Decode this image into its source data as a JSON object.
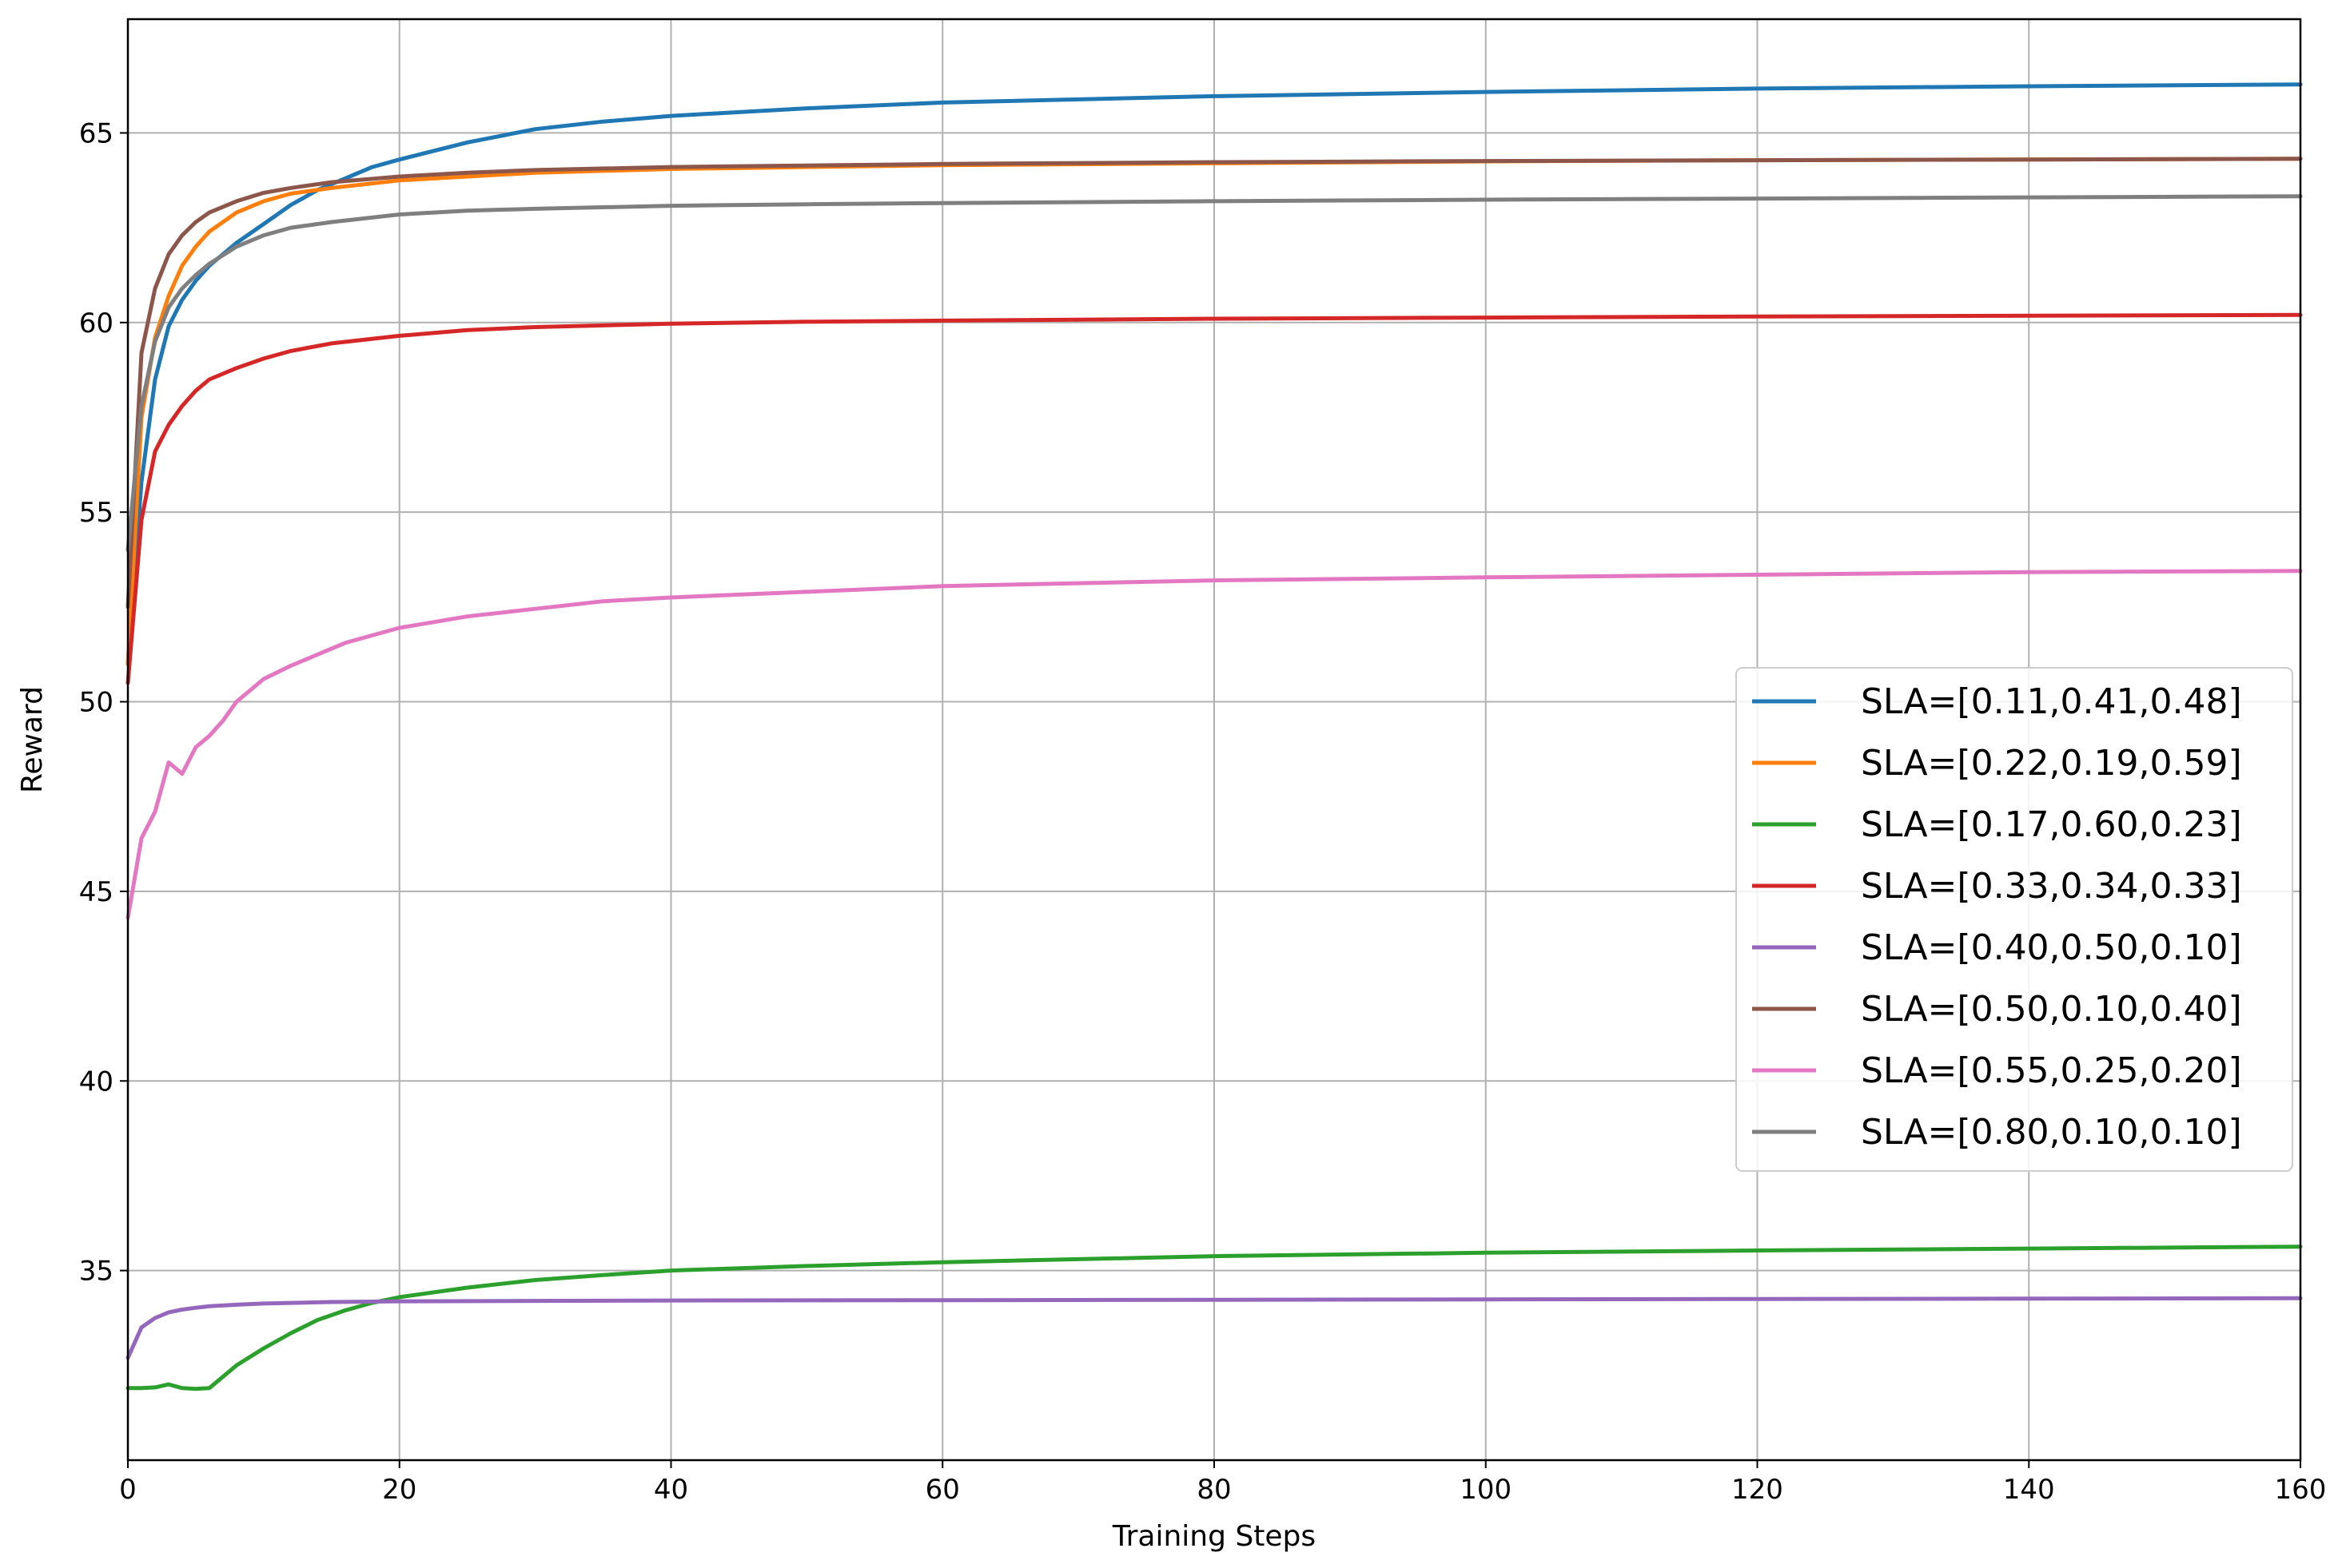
{
  "chart_data": {
    "type": "line",
    "xlabel": "Training Steps",
    "ylabel": "Reward",
    "xlim": [
      0,
      160
    ],
    "ylim": [
      30.0,
      68.0
    ],
    "xticks": [
      0,
      20,
      40,
      60,
      80,
      100,
      120,
      140,
      160
    ],
    "yticks": [
      35,
      40,
      45,
      50,
      55,
      60,
      65
    ],
    "grid": true,
    "legend_position": "center-right",
    "series": [
      {
        "name": "SLA=[0.11,0.41,0.48]",
        "color": "#1f77b4",
        "points": [
          [
            0,
            51.0
          ],
          [
            1,
            55.8
          ],
          [
            2,
            58.5
          ],
          [
            3,
            59.9
          ],
          [
            4,
            60.6
          ],
          [
            5,
            61.1
          ],
          [
            6,
            61.5
          ],
          [
            8,
            62.1
          ],
          [
            10,
            62.6
          ],
          [
            12,
            63.1
          ],
          [
            14,
            63.5
          ],
          [
            16,
            63.8
          ],
          [
            18,
            64.1
          ],
          [
            20,
            64.3
          ],
          [
            25,
            64.75
          ],
          [
            30,
            65.1
          ],
          [
            35,
            65.3
          ],
          [
            40,
            65.45
          ],
          [
            50,
            65.65
          ],
          [
            60,
            65.8
          ],
          [
            80,
            65.97
          ],
          [
            100,
            66.08
          ],
          [
            120,
            66.17
          ],
          [
            140,
            66.23
          ],
          [
            160,
            66.28
          ]
        ]
      },
      {
        "name": "SLA=[0.22,0.19,0.59]",
        "color": "#ff7f0e",
        "points": [
          [
            0,
            51.0
          ],
          [
            1,
            57.5
          ],
          [
            2,
            59.6
          ],
          [
            3,
            60.7
          ],
          [
            4,
            61.5
          ],
          [
            5,
            62.0
          ],
          [
            6,
            62.4
          ],
          [
            8,
            62.9
          ],
          [
            10,
            63.2
          ],
          [
            12,
            63.4
          ],
          [
            15,
            63.55
          ],
          [
            20,
            63.75
          ],
          [
            25,
            63.85
          ],
          [
            30,
            63.95
          ],
          [
            40,
            64.05
          ],
          [
            60,
            64.15
          ],
          [
            80,
            64.2
          ],
          [
            100,
            64.25
          ],
          [
            120,
            64.28
          ],
          [
            140,
            64.3
          ],
          [
            160,
            64.32
          ]
        ]
      },
      {
        "name": "SLA=[0.17,0.60,0.23]",
        "color": "#2ca02c",
        "points": [
          [
            0,
            31.9
          ],
          [
            1,
            31.9
          ],
          [
            2,
            31.92
          ],
          [
            3,
            32.0
          ],
          [
            4,
            31.9
          ],
          [
            5,
            31.88
          ],
          [
            6,
            31.9
          ],
          [
            7,
            32.2
          ],
          [
            8,
            32.5
          ],
          [
            10,
            32.95
          ],
          [
            12,
            33.35
          ],
          [
            14,
            33.7
          ],
          [
            16,
            33.95
          ],
          [
            18,
            34.15
          ],
          [
            20,
            34.3
          ],
          [
            25,
            34.55
          ],
          [
            30,
            34.75
          ],
          [
            35,
            34.88
          ],
          [
            40,
            35.0
          ],
          [
            50,
            35.12
          ],
          [
            60,
            35.22
          ],
          [
            80,
            35.38
          ],
          [
            100,
            35.47
          ],
          [
            120,
            35.53
          ],
          [
            140,
            35.58
          ],
          [
            160,
            35.63
          ]
        ]
      },
      {
        "name": "SLA=[0.33,0.34,0.33]",
        "color": "#d62728",
        "points": [
          [
            0,
            50.5
          ],
          [
            1,
            54.8
          ],
          [
            2,
            56.6
          ],
          [
            3,
            57.3
          ],
          [
            4,
            57.8
          ],
          [
            5,
            58.2
          ],
          [
            6,
            58.5
          ],
          [
            8,
            58.8
          ],
          [
            10,
            59.05
          ],
          [
            12,
            59.25
          ],
          [
            15,
            59.45
          ],
          [
            20,
            59.65
          ],
          [
            25,
            59.8
          ],
          [
            30,
            59.88
          ],
          [
            40,
            59.97
          ],
          [
            50,
            60.02
          ],
          [
            60,
            60.05
          ],
          [
            80,
            60.1
          ],
          [
            100,
            60.13
          ],
          [
            120,
            60.16
          ],
          [
            140,
            60.18
          ],
          [
            160,
            60.2
          ]
        ]
      },
      {
        "name": "SLA=[0.40,0.50,0.10]",
        "color": "#9467bd",
        "points": [
          [
            0,
            32.7
          ],
          [
            1,
            33.5
          ],
          [
            2,
            33.75
          ],
          [
            3,
            33.9
          ],
          [
            4,
            33.97
          ],
          [
            5,
            34.02
          ],
          [
            6,
            34.06
          ],
          [
            8,
            34.1
          ],
          [
            10,
            34.13
          ],
          [
            15,
            34.17
          ],
          [
            20,
            34.19
          ],
          [
            30,
            34.2
          ],
          [
            40,
            34.21
          ],
          [
            60,
            34.22
          ],
          [
            80,
            34.23
          ],
          [
            100,
            34.24
          ],
          [
            120,
            34.25
          ],
          [
            140,
            34.26
          ],
          [
            160,
            34.27
          ]
        ]
      },
      {
        "name": "SLA=[0.50,0.10,0.40]",
        "color": "#8c564b",
        "points": [
          [
            0,
            52.5
          ],
          [
            1,
            59.2
          ],
          [
            2,
            60.9
          ],
          [
            3,
            61.8
          ],
          [
            4,
            62.3
          ],
          [
            5,
            62.65
          ],
          [
            6,
            62.9
          ],
          [
            8,
            63.2
          ],
          [
            10,
            63.42
          ],
          [
            12,
            63.55
          ],
          [
            15,
            63.7
          ],
          [
            20,
            63.85
          ],
          [
            25,
            63.95
          ],
          [
            30,
            64.02
          ],
          [
            40,
            64.1
          ],
          [
            60,
            64.18
          ],
          [
            80,
            64.23
          ],
          [
            100,
            64.26
          ],
          [
            120,
            64.28
          ],
          [
            140,
            64.3
          ],
          [
            160,
            64.32
          ]
        ]
      },
      {
        "name": "SLA=[0.55,0.25,0.20]",
        "color": "#e377c2",
        "points": [
          [
            0,
            44.3
          ],
          [
            1,
            46.4
          ],
          [
            2,
            47.1
          ],
          [
            3,
            48.4
          ],
          [
            4,
            48.1
          ],
          [
            5,
            48.8
          ],
          [
            6,
            49.1
          ],
          [
            7,
            49.5
          ],
          [
            8,
            50.0
          ],
          [
            10,
            50.6
          ],
          [
            12,
            50.95
          ],
          [
            14,
            51.25
          ],
          [
            16,
            51.55
          ],
          [
            18,
            51.75
          ],
          [
            20,
            51.95
          ],
          [
            25,
            52.25
          ],
          [
            30,
            52.45
          ],
          [
            35,
            52.65
          ],
          [
            40,
            52.75
          ],
          [
            50,
            52.9
          ],
          [
            60,
            53.05
          ],
          [
            80,
            53.2
          ],
          [
            100,
            53.28
          ],
          [
            120,
            53.35
          ],
          [
            140,
            53.42
          ],
          [
            160,
            53.45
          ]
        ]
      },
      {
        "name": "SLA=[0.80,0.10,0.10]",
        "color": "#7f7f7f",
        "points": [
          [
            0,
            54.0
          ],
          [
            1,
            57.8
          ],
          [
            2,
            59.5
          ],
          [
            3,
            60.4
          ],
          [
            4,
            60.9
          ],
          [
            5,
            61.25
          ],
          [
            6,
            61.55
          ],
          [
            8,
            62.0
          ],
          [
            10,
            62.3
          ],
          [
            12,
            62.5
          ],
          [
            15,
            62.65
          ],
          [
            20,
            62.85
          ],
          [
            25,
            62.95
          ],
          [
            30,
            63.0
          ],
          [
            40,
            63.08
          ],
          [
            50,
            63.12
          ],
          [
            60,
            63.15
          ],
          [
            80,
            63.2
          ],
          [
            100,
            63.24
          ],
          [
            120,
            63.27
          ],
          [
            140,
            63.3
          ],
          [
            160,
            63.33
          ]
        ]
      }
    ]
  }
}
